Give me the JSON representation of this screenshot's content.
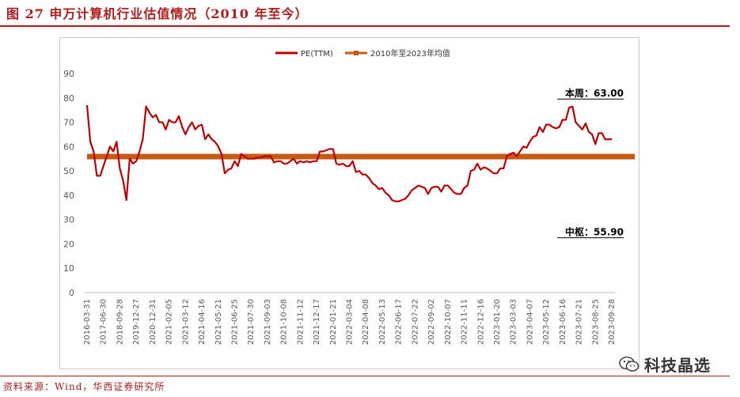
{
  "header": {
    "figure_title": "图 27   申万计算机行业估值情况（2010 年至今）"
  },
  "footer": {
    "source": "资料来源：Wind，华西证券研究所"
  },
  "watermark": {
    "text": "科技晶选",
    "icon": "wechat-icon"
  },
  "chart_data": {
    "type": "line",
    "title": "",
    "xlabel": "",
    "ylabel": "",
    "ylim": [
      0,
      90
    ],
    "yticks": [
      0,
      10,
      20,
      30,
      40,
      50,
      60,
      70,
      80,
      90
    ],
    "grid": false,
    "legend_position": "top-center",
    "x_tick_labels": [
      "2016-03-31",
      "2017-06-30",
      "2018-09-28",
      "2019-12-27",
      "2020-12-31",
      "2021-02-05",
      "2021-03-12",
      "2021-04-16",
      "2021-05-21",
      "2021-06-25",
      "2021-07-30",
      "2021-09-03",
      "2021-10-08",
      "2021-11-12",
      "2021-12-17",
      "2022-01-21",
      "2022-03-04",
      "2022-04-08",
      "2022-05-13",
      "2022-06-17",
      "2022-07-22",
      "2022-09-02",
      "2022-10-07",
      "2022-11-11",
      "2022-12-16",
      "2023-01-20",
      "2023-03-03",
      "2023-04-07",
      "2023-05-12",
      "2023-06-16",
      "2023-07-21",
      "2023-08-25",
      "2023-09-28"
    ],
    "series": [
      {
        "name": "PE(TTM)",
        "color": "#c00000",
        "values": [
          77,
          62,
          58,
          48,
          48,
          52,
          56,
          60,
          58,
          62,
          51,
          46,
          38,
          55,
          53,
          54,
          58,
          63,
          76.5,
          74,
          72,
          73,
          70,
          70,
          67,
          71,
          70,
          70,
          72.5,
          68,
          65,
          68,
          70,
          67,
          68.5,
          69,
          63,
          65,
          63,
          62,
          60,
          57,
          49,
          50.5,
          51,
          54,
          52,
          57,
          56,
          55,
          55,
          55,
          55.5,
          55.5,
          56,
          56,
          56,
          53.5,
          54,
          54,
          53,
          53,
          54,
          55,
          53,
          54,
          53.5,
          54,
          53.5,
          54,
          54,
          58,
          58,
          58.5,
          59,
          59,
          53,
          52.5,
          53,
          52,
          52,
          54,
          49.5,
          50,
          48.5,
          48.5,
          47,
          45,
          44,
          42.5,
          43,
          41,
          40,
          38,
          37.5,
          37.5,
          38,
          38.5,
          40,
          42,
          43,
          44,
          43.5,
          43,
          40.5,
          43,
          43.5,
          43.5,
          41.5,
          44,
          44,
          42.5,
          41,
          40.5,
          40.5,
          43,
          44,
          50,
          50.5,
          53,
          50.5,
          51.5,
          51,
          50,
          49,
          49,
          51,
          51,
          56,
          57,
          57.5,
          56,
          58,
          60,
          59.5,
          62,
          64,
          64.5,
          68,
          66,
          69,
          69,
          68,
          67.5,
          68,
          71,
          71,
          76,
          76.5,
          70,
          68.5,
          67,
          69.5,
          66,
          65,
          61,
          65.5,
          65.5,
          63,
          63,
          63
        ]
      },
      {
        "name": "2010年至2023年均值",
        "color": "#c55a11",
        "values": [
          55.9
        ]
      }
    ],
    "annotations": [
      {
        "text": "本周：63.00",
        "x": "2023-09-28",
        "y": 63.0
      },
      {
        "text": "中枢：55.90",
        "x": "2023-09-28",
        "y": 55.9
      }
    ]
  }
}
